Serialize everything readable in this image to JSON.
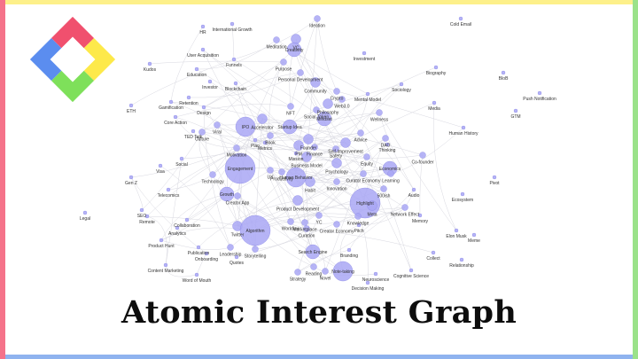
{
  "title": "Atomic Interest Graph",
  "colors": {
    "frame_top": "#fdf08a",
    "frame_bottom": "#8fb3ef",
    "frame_left": "#f5738a",
    "frame_right": "#9be28a",
    "node_fill": "#a9a7f4",
    "node_stroke": "#8a88e6",
    "edge": "#d8d8e0",
    "logo_red": "#f0506e",
    "logo_yellow": "#fde94a",
    "logo_green": "#7ee05a",
    "logo_blue": "#5b8def"
  },
  "logo": {
    "icon": "interlocking-square-logo"
  },
  "graph": {
    "nodes": [
      {
        "label": "Ideation",
        "size": 2
      },
      {
        "label": "Cold Email",
        "size": 1
      },
      {
        "label": "HR",
        "size": 1
      },
      {
        "label": "International Growth",
        "size": 1
      },
      {
        "label": "VC",
        "size": 3
      },
      {
        "label": "Meditation",
        "size": 2
      },
      {
        "label": "User Acquisition",
        "size": 1
      },
      {
        "label": "Creativity",
        "size": 4
      },
      {
        "label": "Investment",
        "size": 1
      },
      {
        "label": "Funnels",
        "size": 1
      },
      {
        "label": "Purpose",
        "size": 2
      },
      {
        "label": "Kudos",
        "size": 1
      },
      {
        "label": "Biography",
        "size": 1
      },
      {
        "label": "BIoB",
        "size": 1
      },
      {
        "label": "Education",
        "size": 1
      },
      {
        "label": "Personal Development",
        "size": 2
      },
      {
        "label": "Investor",
        "size": 1
      },
      {
        "label": "Blockchain",
        "size": 1
      },
      {
        "label": "Community",
        "size": 3
      },
      {
        "label": "Sociology",
        "size": 1
      },
      {
        "label": "Push Notification",
        "size": 1
      },
      {
        "label": "Crypto",
        "size": 2
      },
      {
        "label": "Mental Model",
        "size": 1
      },
      {
        "label": "Retention",
        "size": 1
      },
      {
        "label": "Gamification",
        "size": 1
      },
      {
        "label": "Philosophy",
        "size": 3
      },
      {
        "label": "Web3.0",
        "size": 2
      },
      {
        "label": "ETH",
        "size": 1
      },
      {
        "label": "Design",
        "size": 1
      },
      {
        "label": "NFT",
        "size": 2
      },
      {
        "label": "Social Token",
        "size": 2
      },
      {
        "label": "Media",
        "size": 1
      },
      {
        "label": "GTM",
        "size": 1
      },
      {
        "label": "Wellness",
        "size": 2
      },
      {
        "label": "Mindset",
        "size": 4
      },
      {
        "label": "Core Action",
        "size": 1
      },
      {
        "label": "Viral",
        "size": 2
      },
      {
        "label": "Accelerator",
        "size": 3
      },
      {
        "label": "TED Talk",
        "size": 1
      },
      {
        "label": "Culture",
        "size": 2
      },
      {
        "label": "IPO",
        "size": 5
      },
      {
        "label": "Startup Idea",
        "size": 4
      },
      {
        "label": "Advice",
        "size": 2
      },
      {
        "label": "DAO",
        "size": 2
      },
      {
        "label": "Human History",
        "size": 1
      },
      {
        "label": "Book",
        "size": 2
      },
      {
        "label": "Plan",
        "size": 1
      },
      {
        "label": "Founder",
        "size": 3
      },
      {
        "label": "Thinking",
        "size": 1
      },
      {
        "label": "Metrics",
        "size": 1
      },
      {
        "label": "Motivation",
        "size": 2
      },
      {
        "label": "PM",
        "size": 3
      },
      {
        "label": "Finance",
        "size": 2
      },
      {
        "label": "Self-Improvement",
        "size": 3
      },
      {
        "label": "Safety",
        "size": 2
      },
      {
        "label": "Social",
        "size": 1
      },
      {
        "label": "Co-founder",
        "size": 2
      },
      {
        "label": "Mission",
        "size": 1
      },
      {
        "label": "Business Model",
        "size": 3
      },
      {
        "label": "Economics",
        "size": 4
      },
      {
        "label": "Engagement",
        "size": 7
      },
      {
        "label": "Equity",
        "size": 2
      },
      {
        "label": "Learning",
        "size": 2
      },
      {
        "label": "Psychology",
        "size": 3
      },
      {
        "label": "Visa",
        "size": 1
      },
      {
        "label": "Productivity",
        "size": 2
      },
      {
        "label": "Technology",
        "size": 2
      },
      {
        "label": "UX",
        "size": 2
      },
      {
        "label": "Pivot",
        "size": 1
      },
      {
        "label": "Gen Z",
        "size": 1
      },
      {
        "label": "Human Behavior",
        "size": 5
      },
      {
        "label": "Habit",
        "size": 3
      },
      {
        "label": "Curator Economy",
        "size": 2
      },
      {
        "label": "Innovation",
        "size": 2
      },
      {
        "label": "500ish",
        "size": 2
      },
      {
        "label": "Telecomics",
        "size": 1
      },
      {
        "label": "Audio",
        "size": 1
      },
      {
        "label": "Growth",
        "size": 4
      },
      {
        "label": "Creator App",
        "size": 2
      },
      {
        "label": "Ecosystem",
        "size": 1
      },
      {
        "label": "Product Development",
        "size": 3
      },
      {
        "label": "Highlight",
        "size": 7
      },
      {
        "label": "Meta",
        "size": 3
      },
      {
        "label": "SEO",
        "size": 1
      },
      {
        "label": "Network Effect",
        "size": 2
      },
      {
        "label": "Remote",
        "size": 1
      },
      {
        "label": "Collaboration",
        "size": 1
      },
      {
        "label": "YC",
        "size": 2
      },
      {
        "label": "Knowledge",
        "size": 2
      },
      {
        "label": "Memory",
        "size": 1
      },
      {
        "label": "Workflow",
        "size": 2
      },
      {
        "label": "Marketplace",
        "size": 2
      },
      {
        "label": "Creator Economy",
        "size": 2
      },
      {
        "label": "Analytics",
        "size": 1
      },
      {
        "label": "Twitter",
        "size": 3
      },
      {
        "label": "Algorithm",
        "size": 7
      },
      {
        "label": "Curation",
        "size": 2
      },
      {
        "label": "Pitch",
        "size": 1
      },
      {
        "label": "Elon Musk",
        "size": 1
      },
      {
        "label": "Meme",
        "size": 1
      },
      {
        "label": "Product Hunt",
        "size": 1
      },
      {
        "label": "Leadership",
        "size": 2
      },
      {
        "label": "Publication",
        "size": 1
      },
      {
        "label": "Onboarding",
        "size": 1
      },
      {
        "label": "Storytelling",
        "size": 2
      },
      {
        "label": "Quotes",
        "size": 1
      },
      {
        "label": "Search Engine",
        "size": 4
      },
      {
        "label": "Branding",
        "size": 1
      },
      {
        "label": "Collect",
        "size": 1
      },
      {
        "label": "Relationship",
        "size": 1
      },
      {
        "label": "Content Marketing",
        "size": 1
      },
      {
        "label": "Reading",
        "size": 2
      },
      {
        "label": "Novel",
        "size": 2
      },
      {
        "label": "Strategy",
        "size": 2
      },
      {
        "label": "Neuroscience",
        "size": 1
      },
      {
        "label": "Cognitive Science",
        "size": 1
      },
      {
        "label": "Word of Mouth",
        "size": 1
      },
      {
        "label": "Note-taking",
        "size": 5
      },
      {
        "label": "Decision Making",
        "size": 1
      },
      {
        "label": "Legal",
        "size": 1
      }
    ]
  }
}
